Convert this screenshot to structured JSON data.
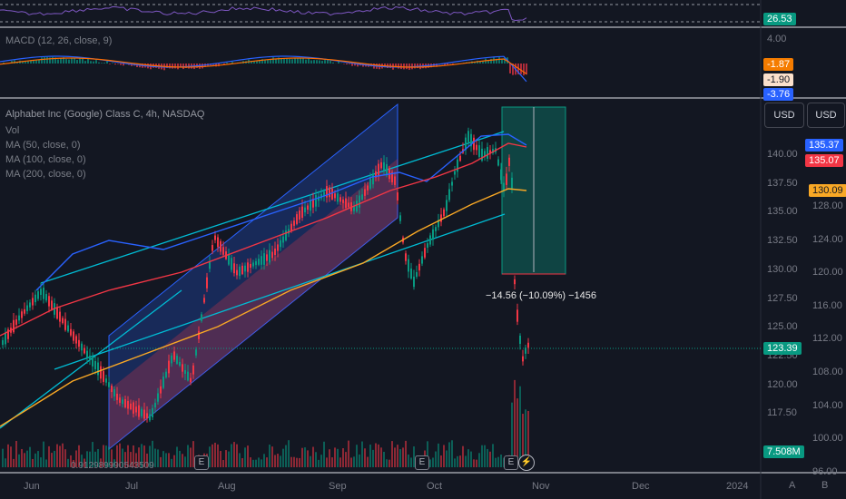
{
  "symbol": {
    "title": "Alphabet Inc (Google) Class C, 4h, NASDAQ",
    "indicators": [
      "Vol",
      "MA (50, close, 0)",
      "MA (100, close, 0)",
      "MA (200, close, 0)"
    ]
  },
  "macd_label": "MACD (12, 26, close, 9)",
  "rsi": {
    "value": "26.53",
    "color": "#089981"
  },
  "macd": {
    "scale_top": "4.00",
    "values": [
      {
        "text": "-1.87",
        "bg": "#f57c00",
        "fg": "#ffffff"
      },
      {
        "text": "-1.90",
        "bg": "#fbe0cc",
        "fg": "#131722"
      },
      {
        "text": "-3.76",
        "bg": "#2962ff",
        "fg": "#ffffff"
      }
    ]
  },
  "currency": [
    "USD",
    "USD"
  ],
  "price_axis": [
    "140.00",
    "137.50",
    "135.00",
    "132.50",
    "130.00",
    "127.50",
    "125.00",
    "122.50",
    "120.00",
    "117.50"
  ],
  "second_axis": [
    "128.00",
    "124.00",
    "120.00",
    "116.00",
    "112.00",
    "108.00",
    "104.00",
    "100.00",
    "96.00"
  ],
  "price_tags": [
    {
      "text": "135.37",
      "bg": "#2962ff"
    },
    {
      "text": "135.07",
      "bg": "#f23645"
    },
    {
      "text": "130.09",
      "bg": "#f9a825"
    },
    {
      "text": "123.39",
      "bg": "#089981"
    },
    {
      "text": "7.508M",
      "bg": "#089981"
    }
  ],
  "measure_label": "−14.56 (−10.09%) −1456",
  "volume_label": "0.912989990543509",
  "time_axis": [
    "Jun",
    "Jul",
    "Aug",
    "Sep",
    "Oct",
    "Nov",
    "Dec",
    "2024"
  ],
  "earnings_marker": "E",
  "scale_buttons": [
    "A",
    "B"
  ],
  "colors": {
    "up": "#089981",
    "down": "#f23645",
    "ma50": "#2962ff",
    "ma100": "#f23645",
    "ma200": "#f9a825",
    "channel_line": "#00bcd4",
    "background": "#131722"
  }
}
